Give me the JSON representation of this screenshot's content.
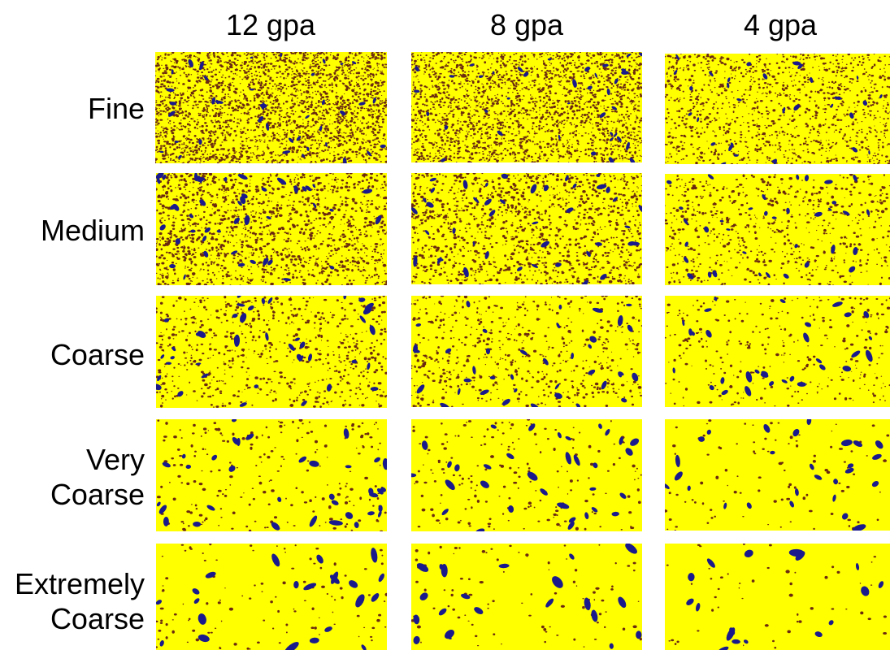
{
  "columns": [
    {
      "label": "12 gpa"
    },
    {
      "label": "8 gpa"
    },
    {
      "label": "4 gpa"
    }
  ],
  "rows": [
    {
      "label_lines": [
        "Fine"
      ]
    },
    {
      "label_lines": [
        "Medium"
      ]
    },
    {
      "label_lines": [
        "Coarse"
      ]
    },
    {
      "label_lines": [
        "Very",
        "Coarse"
      ]
    },
    {
      "label_lines": [
        "Extremely",
        "Coarse"
      ]
    }
  ],
  "colors": {
    "background": "#ffff00",
    "droplet_small": "#6b2a10",
    "droplet_large": "#1a1a8c"
  }
}
